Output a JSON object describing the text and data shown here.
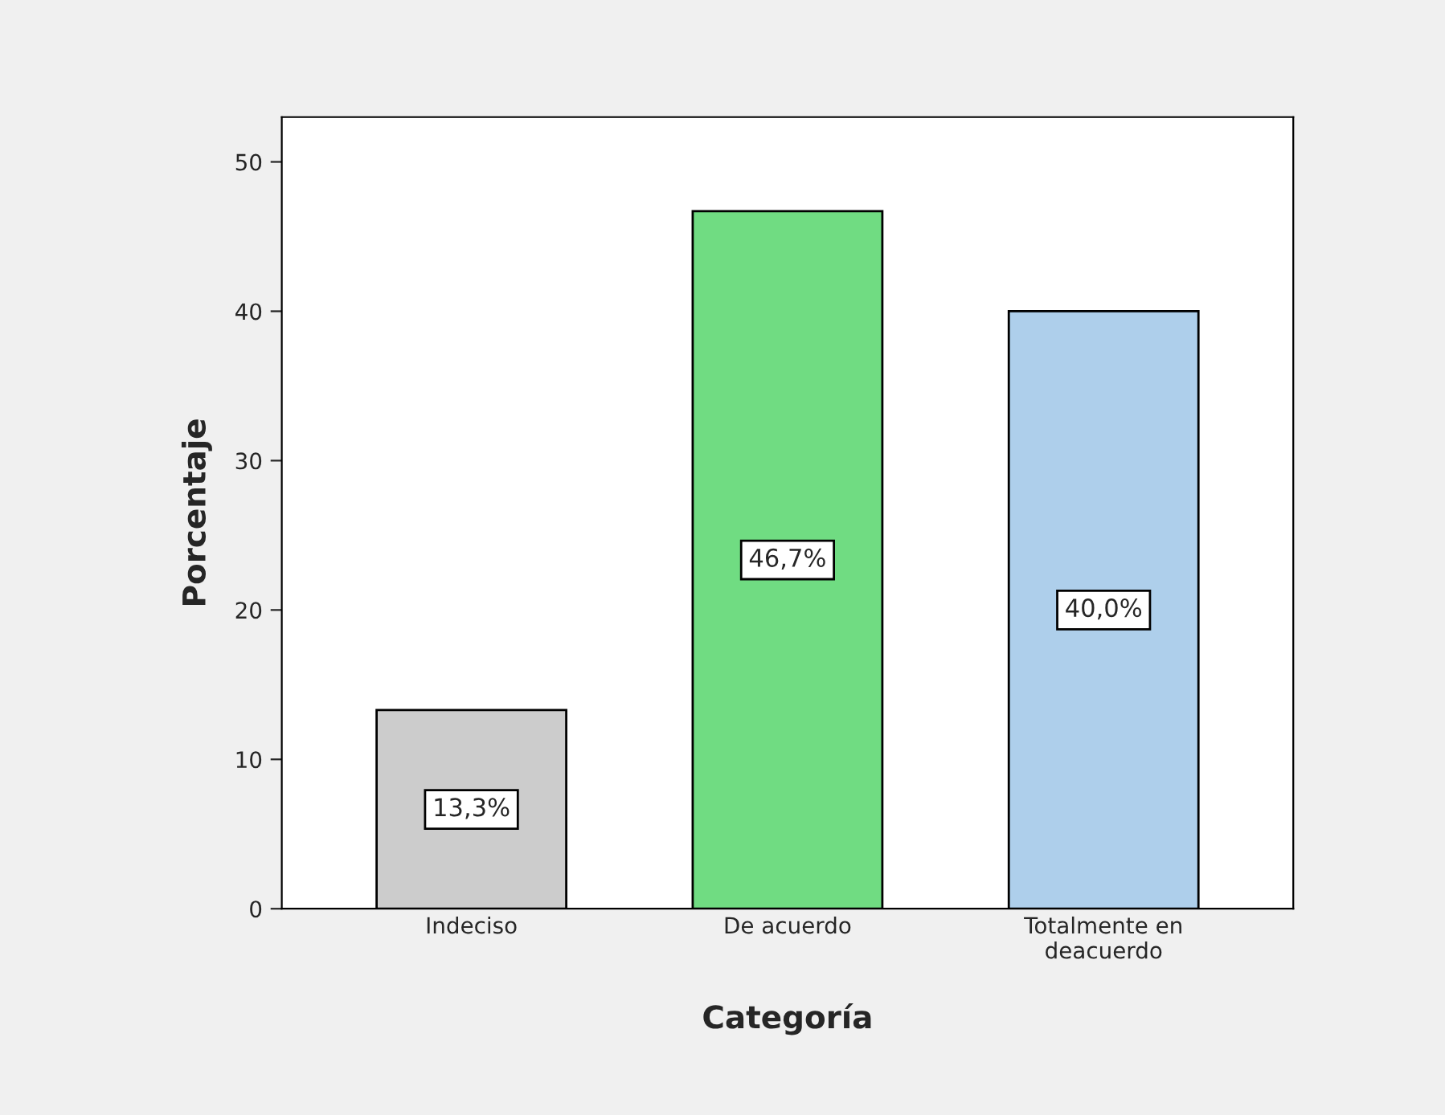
{
  "chart_data": {
    "type": "bar",
    "xlabel": "Categoría",
    "ylabel": "Porcentaje",
    "categories": [
      "Indeciso",
      "De acuerdo",
      "Totalmente en\ndeacuerdo"
    ],
    "values": [
      13.3,
      46.7,
      40.0
    ],
    "colors": [
      "#cccccc",
      "#70dc82",
      "#aecfeb"
    ],
    "value_labels": [
      "13,3%",
      "46,7%",
      "40,0%"
    ],
    "ylim": [
      0,
      53
    ],
    "yticks": [
      0,
      10,
      20,
      30,
      40,
      50
    ],
    "grid": false
  }
}
